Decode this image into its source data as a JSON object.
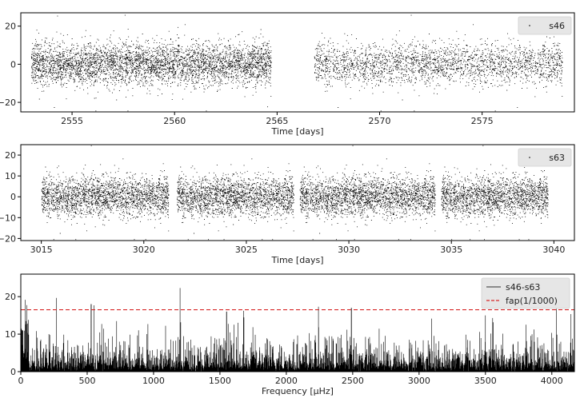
{
  "chart_data": [
    {
      "type": "scatter",
      "title": "",
      "xlabel": "Time [days]",
      "ylabel": "",
      "xlim": [
        2552.5,
        2579.5
      ],
      "ylim": [
        -25,
        27
      ],
      "xticks": [
        2555,
        2560,
        2565,
        2570,
        2575
      ],
      "yticks": [
        -20,
        0,
        20
      ],
      "legend": {
        "placement": "top-right",
        "entries": [
          "s46"
        ]
      },
      "series": [
        {
          "name": "s46",
          "color": "#000000",
          "segments": [
            [
              2553.0,
              2564.7
            ],
            [
              2566.8,
              2578.9
            ]
          ],
          "spread_sd": 5.5,
          "center": 0
        }
      ]
    },
    {
      "type": "scatter",
      "title": "",
      "xlabel": "Time [days]",
      "ylabel": "",
      "xlim": [
        3014.0,
        3041.0
      ],
      "ylim": [
        -21,
        25
      ],
      "xticks": [
        3015,
        3020,
        3025,
        3030,
        3035,
        3040
      ],
      "yticks": [
        -20,
        -10,
        0,
        10,
        20
      ],
      "legend": {
        "placement": "top-right",
        "entries": [
          "s63"
        ]
      },
      "series": [
        {
          "name": "s63",
          "color": "#000000",
          "segments": [
            [
              3015.0,
              3021.2
            ],
            [
              3021.6,
              3027.3
            ],
            [
              3027.6,
              3034.2
            ],
            [
              3034.5,
              3039.7
            ]
          ],
          "spread_sd": 4.8,
          "center": 0
        }
      ]
    },
    {
      "type": "line",
      "title": "",
      "xlabel": "Frequency [μHz]",
      "ylabel": "",
      "xlim": [
        0,
        4170
      ],
      "ylim": [
        0,
        26
      ],
      "xticks": [
        0,
        500,
        1000,
        1500,
        2000,
        2500,
        3000,
        3500,
        4000
      ],
      "yticks": [
        0,
        10,
        20
      ],
      "legend": {
        "placement": "top-right",
        "entries": [
          "s46-s63",
          "fap(1/1000)"
        ]
      },
      "series": [
        {
          "name": "s46-s63",
          "color": "#555555"
        },
        {
          "name": "fap(1/1000)",
          "color": "#d62728",
          "style": "dashed",
          "value": 16.5
        }
      ],
      "peaks": [
        {
          "x": 530,
          "y": 18
        },
        {
          "x": 1200,
          "y": 22.3
        },
        {
          "x": 1550,
          "y": 16
        },
        {
          "x": 2490,
          "y": 17
        },
        {
          "x": 3500,
          "y": 15
        }
      ]
    }
  ]
}
